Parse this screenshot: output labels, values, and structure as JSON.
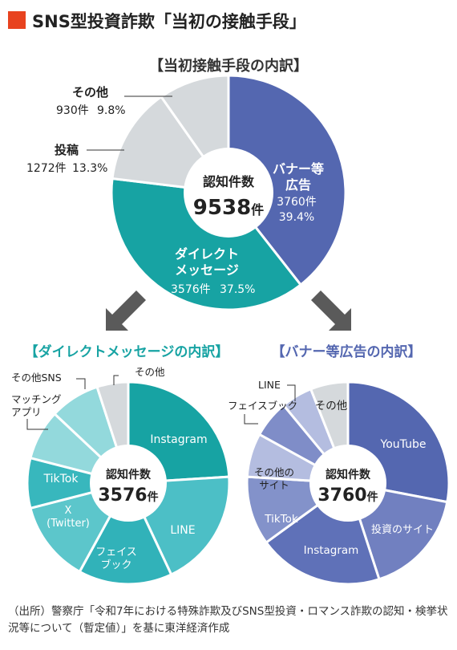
{
  "header": {
    "title": "SNS型投資詐欺「当初の接触手段」",
    "accent_color": "#e8431f"
  },
  "source_note": "（出所）警察庁「令和7年における特殊詐欺及びSNS型投資・ロマンス詐欺の認知・検挙状況等について（暫定値）」を基に東洋経済作成",
  "arrow_color": "#5a5a5a",
  "chart_data": [
    {
      "type": "pie",
      "title": "【当初接触手段の内訳】",
      "center_label": "認知件数",
      "center_value": "9538",
      "center_unit": "件",
      "categories": [
        "バナー等広告",
        "ダイレクトメッセージ",
        "投稿",
        "その他"
      ],
      "values": [
        3760,
        3576,
        1272,
        930
      ],
      "value_labels": [
        "3760件",
        "3576件",
        "1272件",
        "930件"
      ],
      "percent_labels": [
        "39.4%",
        "37.5%",
        "13.3%",
        "9.8%"
      ],
      "colors": [
        "#5467b0",
        "#17a3a3",
        "#d5d9dc",
        "#d5d9dc"
      ]
    },
    {
      "type": "pie",
      "title": "【ダイレクトメッセージの内訳】",
      "title_color": "#17a3a3",
      "center_label": "認知件数",
      "center_value": "3576",
      "center_unit": "件",
      "categories": [
        "Instagram",
        "LINE",
        "フェイスブック",
        "X (Twitter)",
        "TikTok",
        "マッチングアプリ",
        "その他SNS",
        "その他"
      ],
      "values": [
        24,
        19,
        15,
        13,
        8,
        8,
        8,
        5
      ],
      "colors": [
        "#17a3a3",
        "#4cbfc6",
        "#31b2b9",
        "#5cc6cb",
        "#38b7bd",
        "#93d9dc",
        "#93d9dc",
        "#d5d9dc"
      ]
    },
    {
      "type": "pie",
      "title": "【バナー等広告の内訳】",
      "title_color": "#5467b0",
      "center_label": "認知件数",
      "center_value": "3760",
      "center_unit": "件",
      "categories": [
        "YouTube",
        "投資のサイト",
        "Instagram",
        "TikTok",
        "その他のサイト",
        "フェイスブック",
        "LINE",
        "その他"
      ],
      "values": [
        28,
        17,
        20,
        11,
        7,
        6,
        5,
        6
      ],
      "colors": [
        "#5467b0",
        "#7180c0",
        "#5f71b8",
        "#8392ca",
        "#b4bde0",
        "#7f8dc8",
        "#b4bde0",
        "#d5d9dc"
      ]
    }
  ]
}
